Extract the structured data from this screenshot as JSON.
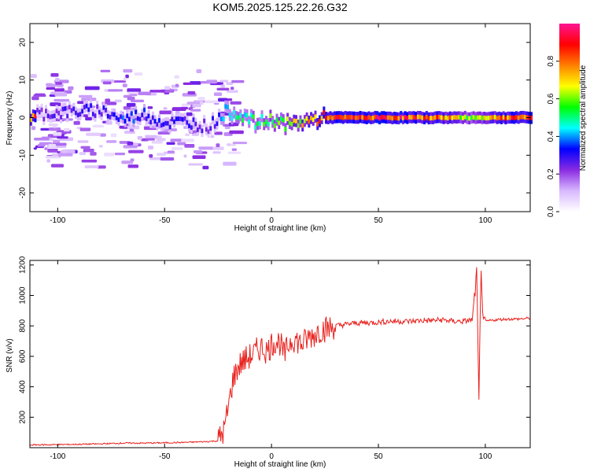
{
  "title": "KOM5.2025.125.22.26.G32",
  "chart_data": [
    {
      "type": "heatmap",
      "xlabel": "Height of straight line (km)",
      "ylabel": "Frequency (Hz)",
      "xlim": [
        -113,
        121
      ],
      "ylim": [
        -25,
        25
      ],
      "xticks": [
        -100,
        -50,
        0,
        50,
        100
      ],
      "yticks": [
        -20,
        -10,
        0,
        10,
        20
      ],
      "colorbar": {
        "label": "Normalized spectral amplitude",
        "range": [
          0,
          1
        ],
        "ticks": [
          0.0,
          0.2,
          0.4,
          0.6,
          0.8
        ],
        "colormap": [
          "#ffffff",
          "#d8b8ff",
          "#8a2be2",
          "#0000ff",
          "#00ffff",
          "#00ff00",
          "#ffff00",
          "#ff8000",
          "#ff0000",
          "#ff1493"
        ]
      },
      "ridge": [
        {
          "x": -110,
          "f": 1.0,
          "amp": 0.25
        },
        {
          "x": -95,
          "f": 1.5,
          "amp": 0.28
        },
        {
          "x": -80,
          "f": 2.0,
          "amp": 0.3
        },
        {
          "x": -70,
          "f": -0.5,
          "amp": 0.35
        },
        {
          "x": -60,
          "f": 1.0,
          "amp": 0.35
        },
        {
          "x": -50,
          "f": -1.5,
          "amp": 0.3
        },
        {
          "x": -40,
          "f": -1.0,
          "amp": 0.3
        },
        {
          "x": -30,
          "f": -2.5,
          "amp": 0.25
        },
        {
          "x": -22,
          "f": 1.5,
          "amp": 0.45
        },
        {
          "x": -15,
          "f": 1.0,
          "amp": 0.5
        },
        {
          "x": -8,
          "f": -1.5,
          "amp": 0.55
        },
        {
          "x": 0,
          "f": -0.5,
          "amp": 0.6
        },
        {
          "x": 8,
          "f": -2.0,
          "amp": 0.65
        },
        {
          "x": 15,
          "f": -1.0,
          "amp": 0.75
        },
        {
          "x": 25,
          "f": 0.0,
          "amp": 0.85
        },
        {
          "x": 40,
          "f": 0.0,
          "amp": 0.9
        },
        {
          "x": 60,
          "f": 0.0,
          "amp": 0.9
        },
        {
          "x": 80,
          "f": 0.0,
          "amp": 0.8
        },
        {
          "x": 95,
          "f": 0.0,
          "amp": 0.6
        },
        {
          "x": 110,
          "f": 0.0,
          "amp": 0.85
        },
        {
          "x": 121,
          "f": 0.0,
          "amp": 0.85
        }
      ]
    },
    {
      "type": "line",
      "xlabel": "Height of straight line (km)",
      "ylabel": "SNR (v/v)",
      "xlim": [
        -113,
        121
      ],
      "ylim": [
        0,
        1230
      ],
      "xticks": [
        -100,
        -50,
        0,
        50,
        100
      ],
      "yticks": [
        200,
        400,
        600,
        800,
        1000,
        1200
      ],
      "color": "#e8201c",
      "series": [
        {
          "x": [
            -113,
            -100,
            -90,
            -80,
            -70,
            -60,
            -50,
            -40,
            -30,
            -25,
            -22,
            -20,
            -18,
            -16,
            -14,
            -12,
            -10,
            -8,
            -6,
            -4,
            -2,
            0,
            2,
            4,
            6,
            8,
            10,
            12,
            14,
            16,
            18,
            20,
            22,
            24,
            26,
            28,
            30,
            35,
            40,
            45,
            50,
            55,
            60,
            65,
            70,
            75,
            80,
            85,
            90,
            94,
            96,
            97,
            98,
            99,
            100,
            105,
            110,
            115,
            121
          ],
          "y": [
            18,
            20,
            22,
            25,
            30,
            30,
            32,
            35,
            40,
            45,
            120,
            280,
            450,
            520,
            560,
            580,
            600,
            620,
            650,
            660,
            630,
            680,
            700,
            690,
            600,
            680,
            720,
            700,
            680,
            700,
            730,
            740,
            770,
            780,
            780,
            790,
            800,
            810,
            820,
            820,
            825,
            830,
            830,
            830,
            835,
            835,
            840,
            830,
            830,
            840,
            1150,
            280,
            1220,
            800,
            830,
            840,
            845,
            845,
            850
          ]
        }
      ]
    }
  ]
}
